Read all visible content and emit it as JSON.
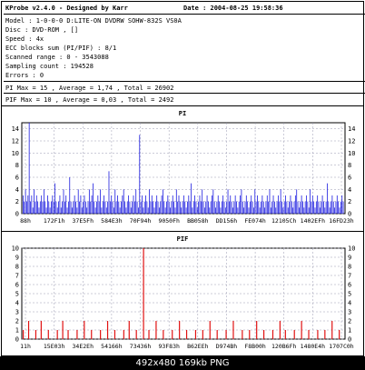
{
  "header": {
    "app_title": "KProbe v2.4.0 - Designed by Karr",
    "date": "Date : 2004-08-25 19:58:36",
    "model": "Model : 1-0-0-0 D:LITE-ON DVDRW SOHW-832S  VS0A",
    "disc": "Disc : DVD-ROM , []",
    "speed": "Speed : 4x",
    "ecc_blocks": "ECC blocks sum (PI/PIF) : 8/1",
    "scanned_range": "Scanned range : 0 - 3543088",
    "sampling_count": "Sampling count : 194528",
    "errors": "Errors : 0",
    "pi_summary": "PI Max = 15 , Average = 1,74 , Total = 26902",
    "pif_summary": "PIF Max = 10 , Average = 0,03 , Total = 2492"
  },
  "caption": "492x480 169kb PNG",
  "colors": {
    "pi_bar": "#2020e0",
    "pif_bar": "#e01010",
    "grid": "#9a9ab0",
    "plot_bg": "#ffffff"
  },
  "chart_data": [
    {
      "type": "bar",
      "title": "PI",
      "ylim": [
        0,
        15
      ],
      "yticks": [
        0,
        2,
        4,
        6,
        8,
        10,
        12,
        14
      ],
      "tick_labels_x": [
        "88h",
        "172F1h",
        "37E5Fh",
        "584E3h",
        "70F94h",
        "9050Fh",
        "BB058h",
        "DD156h",
        "FE074h",
        "12105Ch",
        "1402EFh",
        "16FD23h"
      ],
      "grid": true,
      "series": [
        {
          "values": [
            3,
            2,
            4,
            2,
            3,
            15,
            2,
            3,
            1,
            4,
            2,
            3,
            2,
            1,
            2,
            3,
            2,
            4,
            2,
            1,
            3,
            2,
            1,
            2,
            3,
            2,
            5,
            2,
            1,
            2,
            3,
            1,
            2,
            4,
            2,
            3,
            1,
            2,
            6,
            2,
            1,
            2,
            3,
            2,
            1,
            4,
            2,
            3,
            1,
            2,
            3,
            2,
            1,
            2,
            4,
            2,
            3,
            5,
            2,
            1,
            2,
            3,
            2,
            4,
            1,
            2,
            3,
            2,
            1,
            2,
            7,
            2,
            3,
            2,
            1,
            4,
            2,
            3,
            2,
            1,
            2,
            3,
            4,
            2,
            1,
            2,
            3,
            2,
            1,
            2,
            3,
            2,
            4,
            2,
            1,
            13,
            2,
            3,
            1,
            2,
            3,
            2,
            1,
            4,
            2,
            3,
            2,
            1,
            2,
            3,
            2,
            1,
            2,
            3,
            4,
            2,
            1,
            2,
            3,
            2,
            1,
            2,
            3,
            2,
            1,
            4,
            2,
            3,
            2,
            1,
            2,
            3,
            2,
            1,
            2,
            3,
            2,
            5,
            1,
            2,
            3,
            2,
            1,
            2,
            3,
            2,
            4,
            2,
            1,
            2,
            3,
            2,
            1,
            2,
            3,
            4,
            2,
            1,
            2,
            3,
            2,
            1,
            2,
            3,
            2,
            1,
            2,
            4,
            2,
            3,
            2,
            1,
            2,
            3,
            2,
            1,
            2,
            3,
            4,
            2,
            1,
            2,
            3,
            2,
            1,
            2,
            3,
            2,
            1,
            4,
            2,
            3,
            2,
            1,
            2,
            3,
            2,
            1,
            2,
            3,
            2,
            4,
            1,
            2,
            3,
            2,
            1,
            2,
            3,
            2,
            4,
            2,
            1,
            2,
            3,
            2,
            1,
            2,
            3,
            2,
            1,
            2,
            3,
            4,
            2,
            1,
            2,
            3,
            2,
            1,
            2,
            3,
            2,
            1,
            4,
            2,
            3,
            2,
            1,
            2,
            3,
            2,
            1,
            2,
            3,
            2,
            1,
            2,
            5,
            2,
            1,
            2,
            3,
            2,
            1,
            2,
            3,
            2,
            1,
            2,
            3,
            2
          ]
        }
      ]
    },
    {
      "type": "bar",
      "title": "PIF",
      "ylim": [
        0,
        10
      ],
      "yticks": [
        0,
        1,
        2,
        3,
        4,
        5,
        6,
        7,
        8,
        9,
        10
      ],
      "tick_labels_x": [
        "11h",
        "15E03h",
        "34E2Eh",
        "54166h",
        "73436h",
        "93F83h",
        "B62EEh",
        "D974Bh",
        "F8B00h",
        "120B6Fh",
        "1480E4h",
        "1707C0h"
      ],
      "grid": true,
      "series": [
        {
          "values": [
            1,
            0,
            0,
            2,
            0,
            0,
            0,
            1,
            0,
            0,
            2,
            0,
            0,
            0,
            1,
            0,
            0,
            0,
            0,
            1,
            0,
            0,
            2,
            0,
            0,
            1,
            0,
            0,
            0,
            0,
            1,
            0,
            0,
            0,
            2,
            0,
            0,
            0,
            1,
            0,
            0,
            0,
            0,
            1,
            0,
            0,
            0,
            2,
            0,
            0,
            0,
            1,
            0,
            0,
            0,
            0,
            1,
            0,
            0,
            2,
            0,
            0,
            0,
            1,
            0,
            0,
            0,
            10,
            0,
            0,
            1,
            0,
            0,
            0,
            2,
            0,
            0,
            0,
            1,
            0,
            0,
            0,
            0,
            1,
            0,
            0,
            0,
            2,
            0,
            0,
            0,
            1,
            0,
            0,
            0,
            0,
            1,
            0,
            0,
            0,
            1,
            0,
            0,
            0,
            2,
            0,
            0,
            0,
            1,
            0,
            0,
            0,
            0,
            1,
            0,
            0,
            0,
            2,
            0,
            0,
            0,
            0,
            1,
            0,
            0,
            0,
            1,
            0,
            0,
            0,
            2,
            0,
            0,
            0,
            1,
            0,
            0,
            0,
            0,
            1,
            0,
            0,
            0,
            2,
            0,
            0,
            1,
            0,
            0,
            0,
            0,
            1,
            0,
            0,
            0,
            2,
            0,
            0,
            0,
            1,
            0,
            0,
            0,
            0,
            1,
            0,
            0,
            0,
            1,
            0,
            0,
            0,
            2,
            0,
            0,
            0,
            1,
            0,
            0
          ]
        }
      ]
    }
  ]
}
